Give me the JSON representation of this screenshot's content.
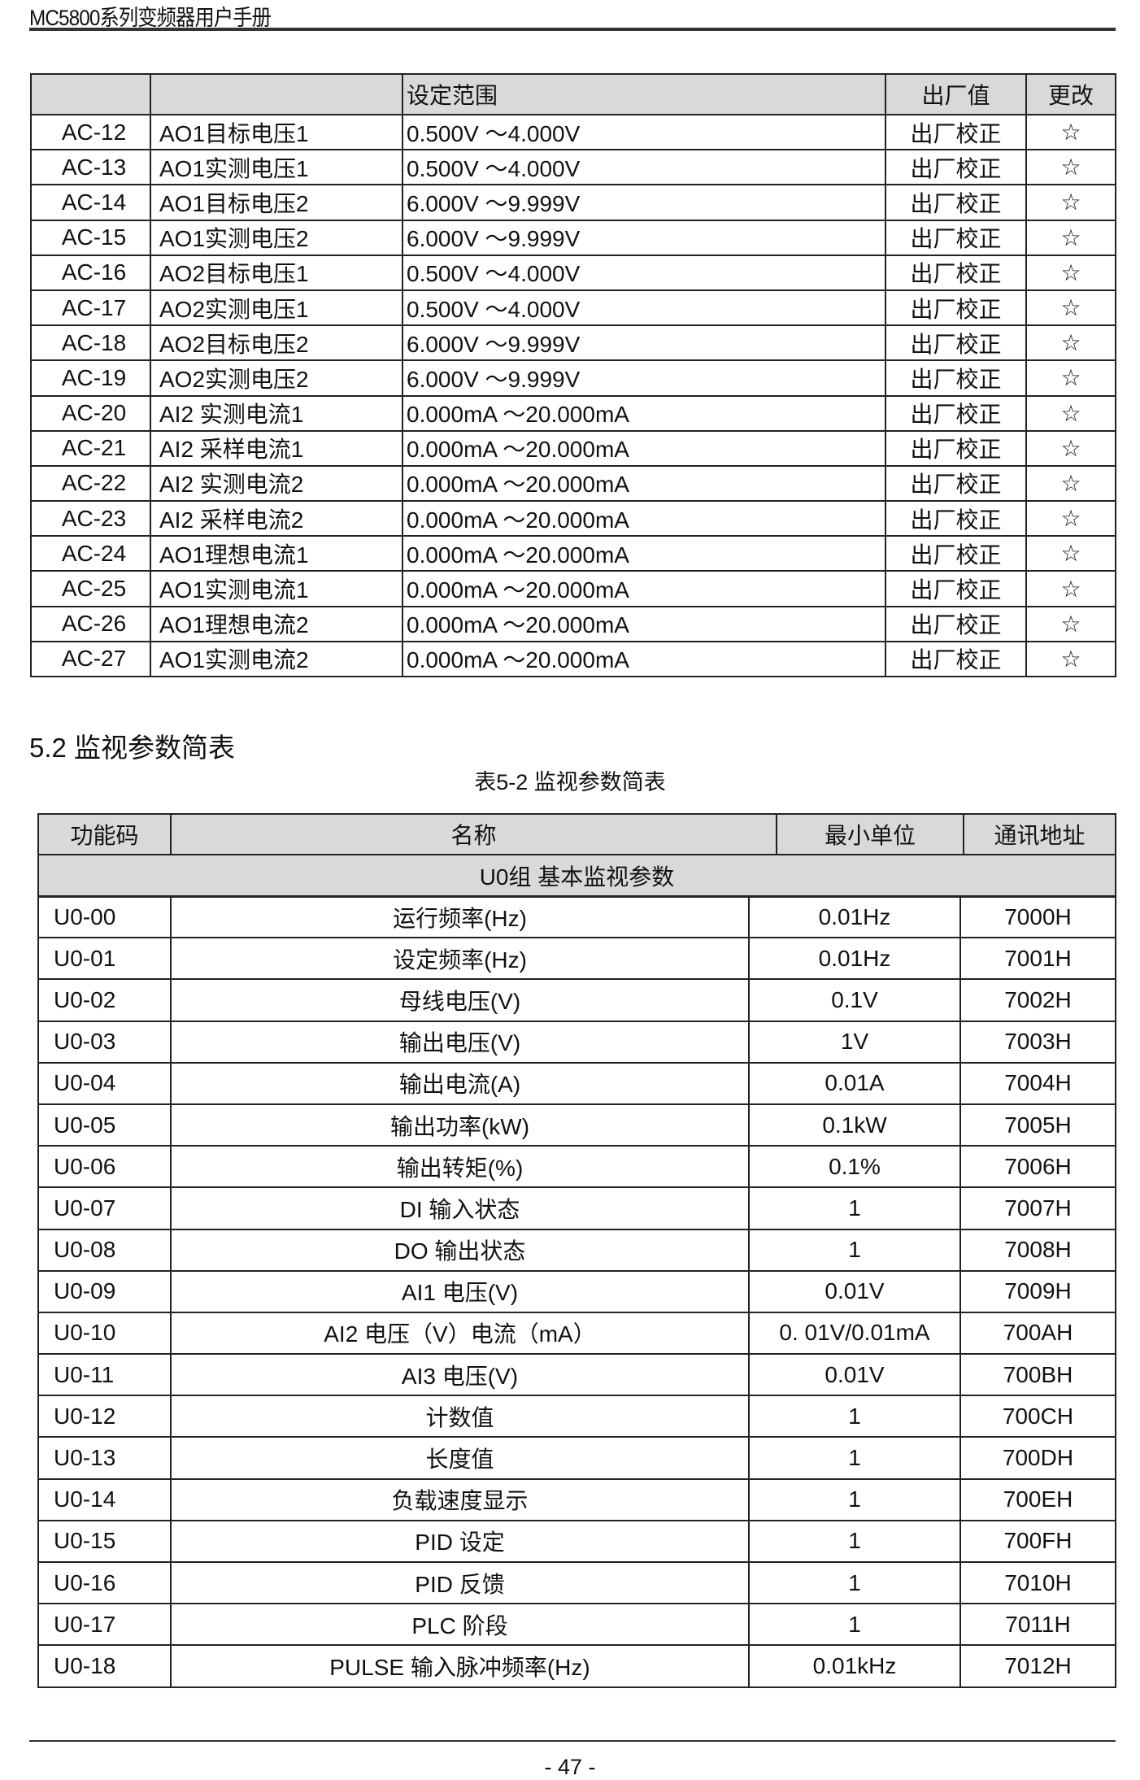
{
  "header": {
    "title": "MC5800系列变频器用户手册"
  },
  "table1": {
    "columns": [
      "",
      "",
      "设定范围",
      "出厂值",
      "更改"
    ],
    "rows": [
      [
        "AC-12",
        "AO1目标电压1",
        "0.500V  ～4.000V",
        "出厂校正",
        "☆"
      ],
      [
        "AC-13",
        "AO1实测电压1",
        "0.500V  ～4.000V",
        "出厂校正",
        "☆"
      ],
      [
        "AC-14",
        "AO1目标电压2",
        "6.000V  ～9.999V",
        "出厂校正",
        "☆"
      ],
      [
        "AC-15",
        "AO1实测电压2",
        "6.000V  ～9.999V",
        "出厂校正",
        "☆"
      ],
      [
        "AC-16",
        "AO2目标电压1",
        "0.500V  ～4.000V",
        "出厂校正",
        "☆"
      ],
      [
        "AC-17",
        "AO2实测电压1",
        "0.500V  ～4.000V",
        "出厂校正",
        "☆"
      ],
      [
        "AC-18",
        "AO2目标电压2",
        "6.000V  ～9.999V",
        "出厂校正",
        "☆"
      ],
      [
        "AC-19",
        "AO2实测电压2",
        "6.000V  ～9.999V",
        "出厂校正",
        "☆"
      ],
      [
        "AC-20",
        "AI2 实测电流1",
        "0.000mA ～20.000mA",
        "出厂校正",
        "☆"
      ],
      [
        "AC-21",
        "AI2 采样电流1",
        "0.000mA ～20.000mA",
        "出厂校正",
        "☆"
      ],
      [
        "AC-22",
        "AI2 实测电流2",
        "0.000mA ～20.000mA",
        "出厂校正",
        "☆"
      ],
      [
        "AC-23",
        "AI2 采样电流2",
        "0.000mA ～20.000mA",
        "出厂校正",
        "☆"
      ],
      [
        "AC-24",
        "AO1理想电流1",
        "0.000mA ～20.000mA",
        "出厂校正",
        "☆"
      ],
      [
        "AC-25",
        "AO1实测电流1",
        "0.000mA ～20.000mA",
        "出厂校正",
        "☆"
      ],
      [
        "AC-26",
        "AO1理想电流2",
        "0.000mA ～20.000mA",
        "出厂校正",
        "☆"
      ],
      [
        "AC-27",
        "AO1实测电流2",
        "0.000mA ～20.000mA",
        "出厂校正",
        "☆"
      ]
    ]
  },
  "section": {
    "title": "5.2  监视参数简表",
    "caption": "表5-2   监视参数简表"
  },
  "table2": {
    "columns": [
      "功能码",
      "名称",
      "最小单位",
      "通讯地址"
    ],
    "group": "U0组 基本监视参数",
    "rows": [
      [
        "U0-00",
        "运行频率(Hz)",
        "0.01Hz",
        "7000H"
      ],
      [
        "U0-01",
        "设定频率(Hz)",
        "0.01Hz",
        "7001H"
      ],
      [
        "U0-02",
        "母线电压(V)",
        "0.1V",
        "7002H"
      ],
      [
        "U0-03",
        "输出电压(V)",
        "1V",
        "7003H"
      ],
      [
        "U0-04",
        "输出电流(A)",
        "0.01A",
        "7004H"
      ],
      [
        "U0-05",
        "输出功率(kW)",
        "0.1kW",
        "7005H"
      ],
      [
        "U0-06",
        "输出转矩(%)",
        "0.1%",
        "7006H"
      ],
      [
        "U0-07",
        "DI  输入状态",
        "1",
        "7007H"
      ],
      [
        "U0-08",
        "DO  输出状态",
        "1",
        "7008H"
      ],
      [
        "U0-09",
        "AI1 电压(V)",
        "0.01V",
        "7009H"
      ],
      [
        "U0-10",
        "AI2  电压（V）电流（mA）",
        "0. 01V/0.01mA",
        "700AH"
      ],
      [
        "U0-11",
        "AI3 电压(V)",
        "0.01V",
        "700BH"
      ],
      [
        "U0-12",
        "计数值",
        "1",
        "700CH"
      ],
      [
        "U0-13",
        "长度值",
        "1",
        "700DH"
      ],
      [
        "U0-14",
        "负载速度显示",
        "1",
        "700EH"
      ],
      [
        "U0-15",
        "PID  设定",
        "1",
        "700FH"
      ],
      [
        "U0-16",
        "PID  反馈",
        "1",
        "7010H"
      ],
      [
        "U0-17",
        "PLC  阶段",
        "1",
        "7011H"
      ],
      [
        "U0-18",
        "PULSE  输入脉冲频率(Hz)",
        "0.01kHz",
        "7012H"
      ]
    ]
  },
  "footer": {
    "page": "- 47 -"
  }
}
